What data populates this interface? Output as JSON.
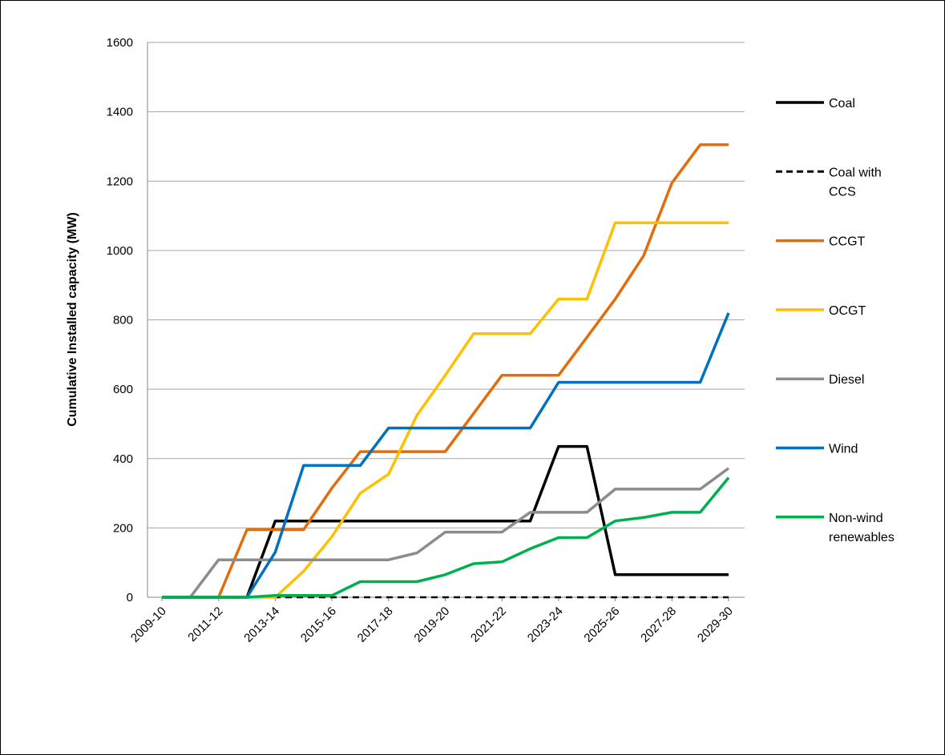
{
  "chart_data": {
    "type": "line",
    "title": "",
    "xlabel": "",
    "ylabel": "Cumulative Installed capacity (MW)",
    "ylim": [
      0,
      1600
    ],
    "yticks": [
      0,
      200,
      400,
      600,
      800,
      1000,
      1200,
      1400,
      1600
    ],
    "grid": "horizontal",
    "legend_position": "right",
    "categories": [
      "2009-10",
      "2010-11",
      "2011-12",
      "2012-13",
      "2013-14",
      "2014-15",
      "2015-16",
      "2016-17",
      "2017-18",
      "2018-19",
      "2019-20",
      "2020-21",
      "2021-22",
      "2022-23",
      "2023-24",
      "2024-25",
      "2025-26",
      "2026-27",
      "2027-28",
      "2028-29",
      "2029-30"
    ],
    "x_tick_labels": [
      "2009-10",
      "2011-12",
      "2013-14",
      "2015-16",
      "2017-18",
      "2019-20",
      "2021-22",
      "2023-24",
      "2025-26",
      "2027-28",
      "2029-30"
    ],
    "series": [
      {
        "name": "Coal",
        "color": "#000000",
        "dash": false,
        "values": [
          0,
          0,
          0,
          0,
          220,
          220,
          220,
          220,
          220,
          220,
          220,
          220,
          220,
          220,
          435,
          435,
          65,
          65,
          65,
          65,
          65
        ]
      },
      {
        "name": "Coal with CCS",
        "color": "#000000",
        "dash": true,
        "values": [
          0,
          0,
          0,
          0,
          0,
          0,
          0,
          0,
          0,
          0,
          0,
          0,
          0,
          0,
          0,
          0,
          0,
          0,
          0,
          0,
          0
        ]
      },
      {
        "name": "CCGT",
        "color": "#E46C0A",
        "dash": false,
        "values": [
          0,
          0,
          0,
          195,
          195,
          195,
          315,
          420,
          420,
          420,
          420,
          530,
          640,
          640,
          640,
          750,
          860,
          985,
          1195,
          1305,
          1305
        ]
      },
      {
        "name": "OCGT",
        "color": "#FFC000",
        "dash": false,
        "values": [
          0,
          0,
          0,
          0,
          0,
          75,
          175,
          300,
          355,
          525,
          640,
          760,
          760,
          760,
          860,
          860,
          1080,
          1080,
          1080,
          1080,
          1080
        ]
      },
      {
        "name": "Diesel",
        "color": "#8C8C8C",
        "dash": false,
        "values": [
          0,
          0,
          108,
          108,
          108,
          108,
          108,
          108,
          108,
          128,
          188,
          188,
          188,
          245,
          245,
          245,
          312,
          312,
          312,
          312,
          372
        ]
      },
      {
        "name": "Wind",
        "color": "#0070C0",
        "dash": false,
        "values": [
          0,
          0,
          0,
          0,
          130,
          380,
          380,
          380,
          488,
          488,
          488,
          488,
          488,
          488,
          620,
          620,
          620,
          620,
          620,
          620,
          820
        ]
      },
      {
        "name": "Non-wind renewables",
        "legend_lines": [
          "Non-wind",
          "renewables"
        ],
        "color": "#00B050",
        "dash": false,
        "values": [
          0,
          0,
          0,
          0,
          5,
          5,
          5,
          45,
          45,
          45,
          65,
          97,
          102,
          140,
          172,
          172,
          220,
          230,
          245,
          245,
          345
        ]
      }
    ]
  }
}
